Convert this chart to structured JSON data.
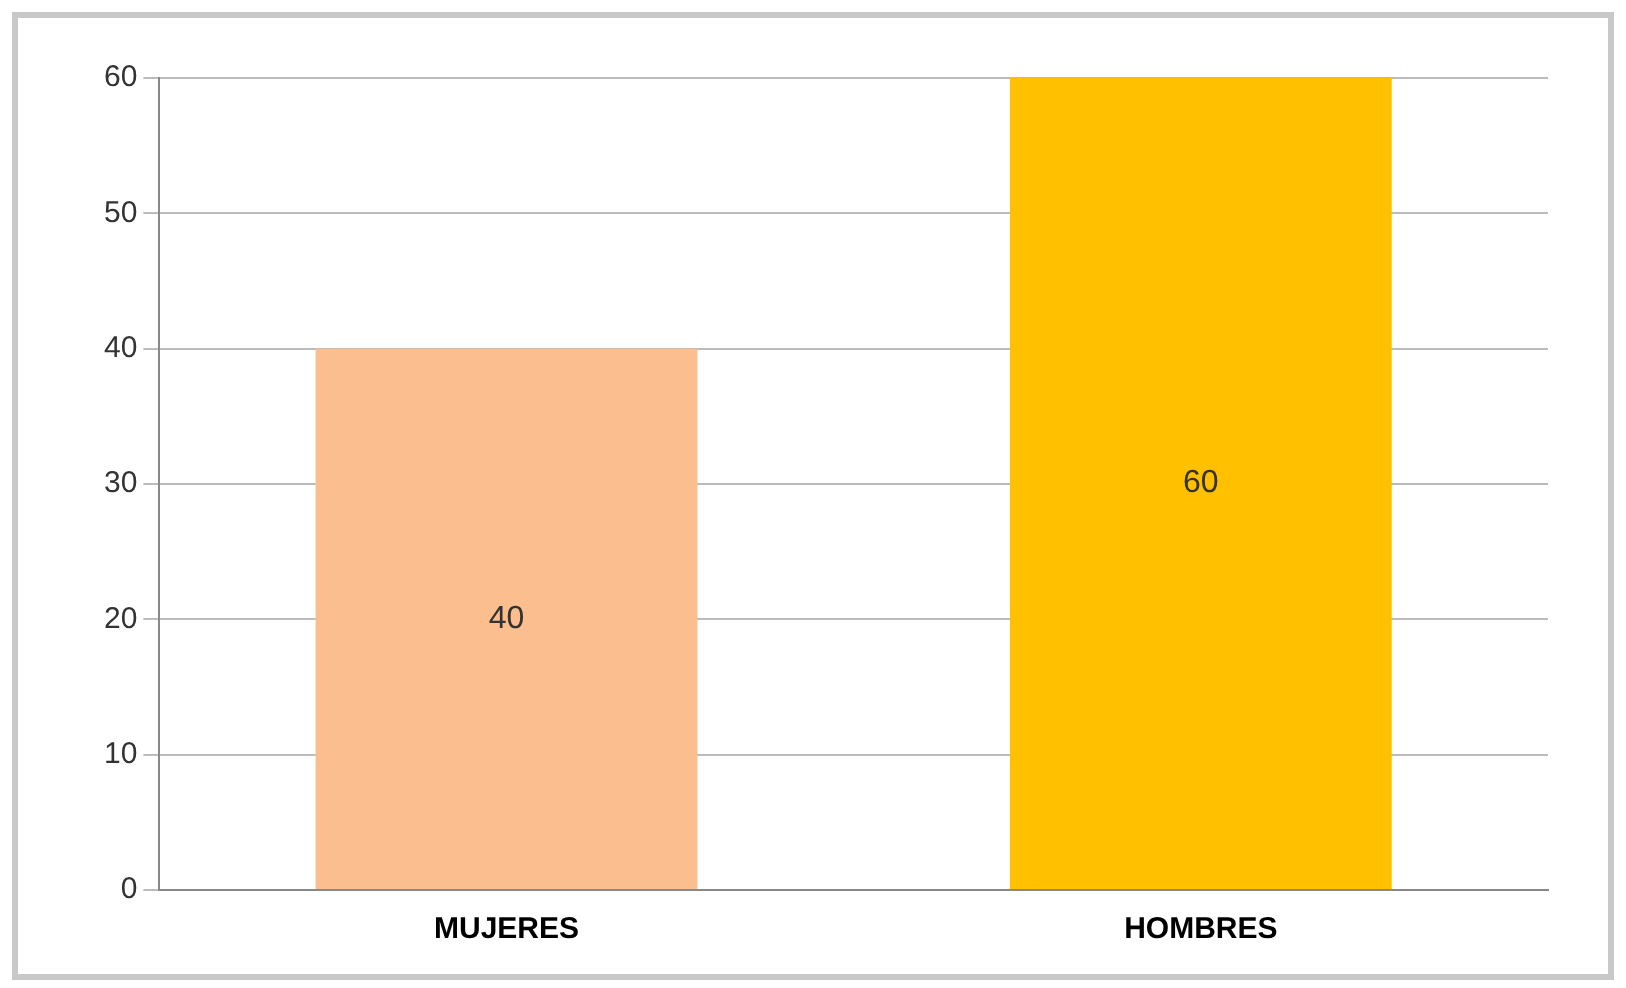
{
  "chart_data": {
    "type": "bar",
    "categories": [
      "MUJERES",
      "HOMBRES"
    ],
    "values": [
      40,
      60
    ],
    "colors": [
      "#fbbf8f",
      "#ffc000"
    ],
    "ylim": [
      0,
      60
    ],
    "yticks": [
      0,
      10,
      20,
      30,
      40,
      50,
      60
    ],
    "grid": "y",
    "legend": false,
    "data_labels": true
  }
}
